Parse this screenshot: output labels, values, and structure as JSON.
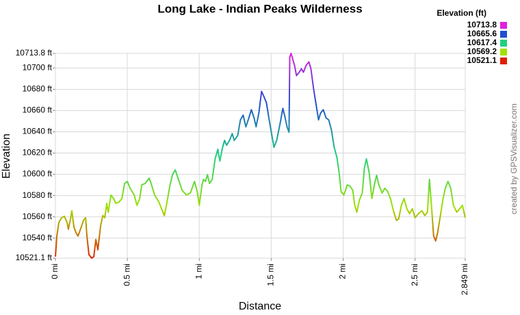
{
  "chart_data": {
    "type": "line",
    "title": "Long Lake - Indian Peaks Wilderness",
    "x_label": "Distance",
    "y_label": "Elevation",
    "credit": "created by GPSVisualizer.com",
    "grid": true,
    "colorscale": {
      "title": "Elevation (ft)",
      "values": [
        10713.8,
        10665.6,
        10617.4,
        10569.2,
        10521.1
      ],
      "colors": [
        "#e020e0",
        "#2050d0",
        "#20d080",
        "#a0e000",
        "#e02000"
      ]
    },
    "xlim": [
      0,
      2.849
    ],
    "ylim": [
      10521.1,
      10713.8
    ],
    "xticks": [
      {
        "value": 0,
        "label": "0 mi"
      },
      {
        "value": 0.5,
        "label": "0.5 mi"
      },
      {
        "value": 1,
        "label": "1 mi"
      },
      {
        "value": 1.5,
        "label": "1.5 mi"
      },
      {
        "value": 2,
        "label": "2 mi"
      },
      {
        "value": 2.5,
        "label": "2.5 mi"
      },
      {
        "value": 2.849,
        "label": "2.849 mi"
      }
    ],
    "yticks": [
      {
        "value": 10521.1,
        "label": "10521.1 ft"
      },
      {
        "value": 10540,
        "label": "10540 ft"
      },
      {
        "value": 10560,
        "label": "10560 ft"
      },
      {
        "value": 10580,
        "label": "10580 ft"
      },
      {
        "value": 10600,
        "label": "10600 ft"
      },
      {
        "value": 10620,
        "label": "10620 ft"
      },
      {
        "value": 10640,
        "label": "10640 ft"
      },
      {
        "value": 10660,
        "label": "10660 ft"
      },
      {
        "value": 10680,
        "label": "10680 ft"
      },
      {
        "value": 10700,
        "label": "10700 ft"
      },
      {
        "value": 10713.8,
        "label": "10713.8 ft"
      }
    ],
    "x": [
      0,
      0.01,
      0.024,
      0.043,
      0.062,
      0.081,
      0.09,
      0.105,
      0.114,
      0.129,
      0.143,
      0.157,
      0.176,
      0.195,
      0.21,
      0.219,
      0.233,
      0.252,
      0.267,
      0.281,
      0.295,
      0.314,
      0.329,
      0.343,
      0.357,
      0.367,
      0.386,
      0.405,
      0.419,
      0.443,
      0.462,
      0.481,
      0.5,
      0.519,
      0.548,
      0.567,
      0.586,
      0.6,
      0.624,
      0.652,
      0.671,
      0.69,
      0.719,
      0.738,
      0.757,
      0.776,
      0.795,
      0.814,
      0.833,
      0.852,
      0.881,
      0.91,
      0.938,
      0.967,
      0.986,
      1.0,
      1.019,
      1.029,
      1.043,
      1.057,
      1.071,
      1.09,
      1.11,
      1.129,
      1.143,
      1.162,
      1.176,
      1.19,
      1.21,
      1.229,
      1.243,
      1.267,
      1.286,
      1.305,
      1.324,
      1.343,
      1.362,
      1.381,
      1.395,
      1.414,
      1.433,
      1.448,
      1.467,
      1.486,
      1.505,
      1.519,
      1.538,
      1.562,
      1.581,
      1.595,
      1.61,
      1.624,
      1.629,
      1.638,
      1.662,
      1.676,
      1.695,
      1.71,
      1.724,
      1.743,
      1.762,
      1.776,
      1.795,
      1.814,
      1.829,
      1.843,
      1.862,
      1.881,
      1.9,
      1.919,
      1.938,
      1.957,
      1.971,
      1.986,
      2.005,
      2.029,
      2.048,
      2.067,
      2.081,
      2.095,
      2.114,
      2.133,
      2.148,
      2.162,
      2.181,
      2.2,
      2.219,
      2.233,
      2.248,
      2.271,
      2.29,
      2.31,
      2.329,
      2.352,
      2.371,
      2.386,
      2.405,
      2.424,
      2.443,
      2.462,
      2.481,
      2.5,
      2.524,
      2.548,
      2.567,
      2.586,
      2.6,
      2.614,
      2.629,
      2.643,
      2.657,
      2.676,
      2.695,
      2.71,
      2.729,
      2.748,
      2.767,
      2.79,
      2.81,
      2.829,
      2.849
    ],
    "values": [
      10522.6,
      10541.9,
      10554.7,
      10559.2,
      10560.5,
      10554.7,
      10548.3,
      10558.0,
      10565.7,
      10550.3,
      10545.1,
      10541.9,
      10549.0,
      10556.7,
      10559.2,
      10541.9,
      10524.5,
      10521.1,
      10522.6,
      10538.7,
      10529.0,
      10551.5,
      10561.2,
      10559.2,
      10572.7,
      10564.4,
      10580.5,
      10577.2,
      10572.7,
      10574.0,
      10577.2,
      10591.4,
      10593.3,
      10586.9,
      10580.5,
      10570.8,
      10577.2,
      10590.1,
      10591.4,
      10596.5,
      10588.8,
      10580.5,
      10574.0,
      10567.6,
      10561.2,
      10574.0,
      10588.8,
      10599.7,
      10604.2,
      10596.5,
      10585.0,
      10580.5,
      10582.4,
      10593.3,
      10583.7,
      10570.8,
      10590.1,
      10595.2,
      10593.3,
      10599.7,
      10591.4,
      10595.2,
      10614.5,
      10623.5,
      10612.6,
      10625.4,
      10631.9,
      10627.4,
      10631.9,
      10638.3,
      10631.9,
      10636.4,
      10651.2,
      10655.7,
      10644.7,
      10652.4,
      10660.8,
      10653.1,
      10644.7,
      10657.6,
      10678.1,
      10673.6,
      10667.2,
      10651.2,
      10636.4,
      10625.4,
      10631.9,
      10647.9,
      10662.1,
      10654.4,
      10644.7,
      10639.6,
      10710.3,
      10713.8,
      10702.6,
      10692.9,
      10696.1,
      10699.4,
      10696.1,
      10702.6,
      10705.8,
      10699.4,
      10680.1,
      10664.0,
      10651.2,
      10657.6,
      10660.8,
      10653.1,
      10651.2,
      10641.5,
      10625.4,
      10615.8,
      10603.0,
      10583.7,
      10580.5,
      10590.1,
      10588.8,
      10585.0,
      10570.8,
      10564.4,
      10576.0,
      10582.4,
      10606.2,
      10614.5,
      10601.7,
      10577.2,
      10591.4,
      10599.1,
      10590.1,
      10582.4,
      10586.9,
      10583.7,
      10577.2,
      10564.4,
      10556.7,
      10558.0,
      10570.8,
      10577.2,
      10567.6,
      10563.1,
      10567.6,
      10559.2,
      10563.1,
      10565.7,
      10561.2,
      10564.4,
      10595.2,
      10570.8,
      10541.9,
      10537.4,
      10545.1,
      10561.2,
      10577.2,
      10586.9,
      10593.3,
      10586.9,
      10570.8,
      10564.4,
      10567.6,
      10570.8,
      10559.2
    ]
  }
}
